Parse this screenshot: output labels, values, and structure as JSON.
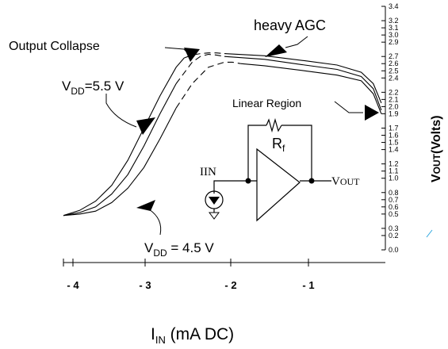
{
  "chart_data": {
    "type": "line",
    "title": "",
    "xlabel": "I_IN (mA DC)",
    "xlabel_main": "I",
    "xlabel_sub": "IN",
    "xlabel_rest": " (mA DC)",
    "ylabel": "VOUT(Volts)",
    "ylabel_main": "V",
    "ylabel_sub": "OUT",
    "ylabel_rest": "(Volts)",
    "xlim": [
      -4,
      0
    ],
    "ylim": [
      0,
      3.4
    ],
    "x_ticks": [
      "- 4",
      "- 3",
      "- 2",
      "- 1"
    ],
    "x_tick_values": [
      -4,
      -3,
      -2,
      -1
    ],
    "y_ticks": [
      "0.0",
      "0.2",
      "0.3",
      "0.5",
      "0.6",
      "0.7",
      "0.8",
      "1.0",
      "1.1",
      "1.2",
      "1.4",
      "1.5",
      "1.6",
      "1.7",
      "1.9",
      "2.0",
      "2.1",
      "2.2",
      "2.4",
      "2.5",
      "2.6",
      "2.7",
      "2.9",
      "3.0",
      "3.1",
      "3.2",
      "3.4"
    ],
    "y_tick_values": [
      0.0,
      0.2,
      0.3,
      0.5,
      0.6,
      0.7,
      0.8,
      1.0,
      1.1,
      1.2,
      1.4,
      1.5,
      1.6,
      1.7,
      1.9,
      2.0,
      2.1,
      2.2,
      2.4,
      2.5,
      2.6,
      2.7,
      2.9,
      3.0,
      3.1,
      3.2,
      3.4
    ],
    "series": [
      {
        "x": [
          -4.0,
          -3.8,
          -3.6,
          -3.4,
          -3.2,
          -3.0,
          -2.8,
          -2.6,
          -2.5,
          -2.4,
          -2.3,
          -2.2,
          -2.1,
          -2.0,
          -1.5,
          -1.0,
          -0.6,
          -0.3,
          -0.15,
          -0.05
        ],
        "y": [
          0.48,
          0.55,
          0.68,
          0.9,
          1.25,
          1.7,
          2.15,
          2.55,
          2.68,
          2.72,
          2.74,
          2.75,
          2.75,
          2.74,
          2.71,
          2.64,
          2.58,
          2.48,
          2.32,
          2.05
        ]
      },
      {
        "x": [
          -4.0,
          -3.8,
          -3.6,
          -3.4,
          -3.2,
          -3.0,
          -2.8,
          -2.6,
          -2.4,
          -2.3,
          -2.2,
          -2.1,
          -2.0,
          -1.5,
          -1.0,
          -0.6,
          -0.3,
          -0.15,
          -0.05
        ],
        "y": [
          0.48,
          0.52,
          0.6,
          0.78,
          1.05,
          1.45,
          1.9,
          2.32,
          2.62,
          2.7,
          2.73,
          2.72,
          2.7,
          2.66,
          2.58,
          2.52,
          2.42,
          2.25,
          1.95
        ]
      },
      {
        "x": [
          -4.0,
          -3.8,
          -3.6,
          -3.4,
          -3.2,
          -3.0,
          -2.8,
          -2.6,
          -2.4,
          -2.2,
          -2.0,
          -1.9,
          -1.8,
          -1.5,
          -1.0,
          -0.6,
          -0.3,
          -0.15,
          -0.05
        ],
        "y": [
          0.48,
          0.5,
          0.54,
          0.66,
          0.86,
          1.15,
          1.55,
          1.98,
          2.32,
          2.55,
          2.62,
          2.62,
          2.6,
          2.57,
          2.5,
          2.44,
          2.36,
          2.18,
          1.9
        ]
      }
    ],
    "annotations": {
      "output_collapse": "Output Collapse",
      "heavy_agc": "heavy AGC",
      "vdd_high_main": "V",
      "vdd_high_sub": "DD",
      "vdd_high_rest": "=5.5 V",
      "linear_region": "Linear Region",
      "vdd_low_main": "V",
      "vdd_low_sub": "DD",
      "vdd_low_rest": " = 4.5 V"
    },
    "circuit": {
      "rf_main": "R",
      "rf_sub": "f",
      "iin_label": "IIN",
      "vout_main": "V",
      "vout_sub": "OUT"
    }
  }
}
